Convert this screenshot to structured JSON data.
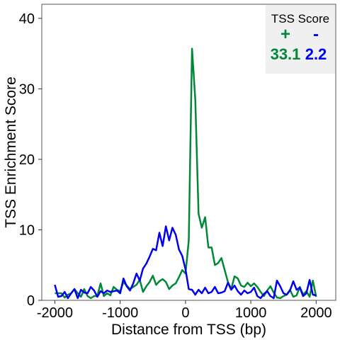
{
  "chart_data": {
    "type": "line",
    "xlabel": "Distance from TSS (bp)",
    "ylabel": "TSS Enrichment Score",
    "xlim": [
      -2200,
      2300
    ],
    "ylim": [
      0,
      42
    ],
    "xticks": [
      -2000,
      -1000,
      0,
      1000,
      2000
    ],
    "xtick_labels": [
      "-2000",
      "-1000",
      "0",
      "1000",
      "2000"
    ],
    "yticks": [
      0,
      10,
      20,
      30,
      40
    ],
    "ytick_labels": [
      "0",
      "10",
      "20",
      "30",
      "40"
    ],
    "grid": false,
    "legend": {
      "title": "TSS Score",
      "placement": "top-right",
      "entries": [
        {
          "sign": "+",
          "value": "33.1",
          "color": "#008837"
        },
        {
          "sign": "-",
          "value": "2.2",
          "color": "#0000ee"
        }
      ]
    },
    "series": [
      {
        "color": "#008837",
        "x": [
          -2000,
          -1950,
          -1900,
          -1850,
          -1800,
          -1750,
          -1700,
          -1650,
          -1600,
          -1550,
          -1500,
          -1450,
          -1400,
          -1350,
          -1300,
          -1250,
          -1200,
          -1150,
          -1100,
          -1050,
          -1000,
          -950,
          -900,
          -850,
          -800,
          -750,
          -700,
          -650,
          -600,
          -550,
          -500,
          -450,
          -400,
          -350,
          -300,
          -250,
          -200,
          -150,
          -100,
          -50,
          0,
          50,
          100,
          150,
          200,
          250,
          300,
          350,
          400,
          450,
          500,
          550,
          600,
          650,
          700,
          750,
          800,
          850,
          900,
          950,
          1000,
          1050,
          1100,
          1150,
          1200,
          1250,
          1300,
          1350,
          1400,
          1450,
          1500,
          1550,
          1600,
          1650,
          1700,
          1750,
          1800,
          1850,
          1900,
          1950,
          2000
        ],
        "y": [
          1.0,
          1.0,
          1.0,
          0.4,
          0.8,
          1.0,
          1.6,
          1.0,
          0.5,
          1.6,
          0.6,
          0.3,
          0.6,
          0.6,
          2.4,
          0.6,
          1.0,
          0.7,
          1.9,
          1.5,
          1.3,
          2.6,
          2.1,
          1.6,
          1.9,
          2.2,
          2.9,
          1.2,
          2.0,
          2.6,
          3.5,
          2.2,
          2.7,
          3.0,
          2.6,
          1.6,
          2.1,
          2.4,
          3.3,
          4.3,
          3.8,
          8.5,
          35.7,
          28.5,
          12.3,
          10.3,
          11.8,
          7.5,
          7.5,
          5.0,
          5.3,
          6.0,
          4.3,
          2.6,
          1.6,
          3.4,
          3.1,
          2.1,
          1.9,
          2.5,
          2.0,
          2.4,
          1.9,
          1.2,
          0.6,
          1.4,
          2.0,
          1.1,
          0.4,
          0.3,
          0.6,
          0.8,
          1.5,
          0.5,
          0.7,
          1.9,
          0.8,
          1.3,
          0.5,
          2.8,
          0.5
        ]
      },
      {
        "color": "#0000ee",
        "x": [
          -2000,
          -1950,
          -1900,
          -1850,
          -1800,
          -1750,
          -1700,
          -1650,
          -1600,
          -1550,
          -1500,
          -1450,
          -1400,
          -1350,
          -1300,
          -1250,
          -1200,
          -1150,
          -1100,
          -1050,
          -1000,
          -950,
          -900,
          -850,
          -800,
          -750,
          -700,
          -650,
          -600,
          -550,
          -500,
          -450,
          -400,
          -350,
          -300,
          -250,
          -200,
          -150,
          -100,
          -50,
          0,
          50,
          100,
          150,
          200,
          250,
          300,
          350,
          400,
          450,
          500,
          550,
          600,
          650,
          700,
          750,
          800,
          850,
          900,
          950,
          1000,
          1050,
          1100,
          1150,
          1200,
          1250,
          1300,
          1350,
          1400,
          1450,
          1500,
          1550,
          1600,
          1650,
          1700,
          1750,
          1800,
          1850,
          1900,
          1950,
          2000
        ],
        "y": [
          2.2,
          0.5,
          0.6,
          1.2,
          0.3,
          1.0,
          1.6,
          0.3,
          1.5,
          1.1,
          1.0,
          1.9,
          1.4,
          0.5,
          1.3,
          1.0,
          1.4,
          1.2,
          1.3,
          1.4,
          1.0,
          3.1,
          2.0,
          1.4,
          2.4,
          3.8,
          2.8,
          4.5,
          5.2,
          6.2,
          7.3,
          7.1,
          9.6,
          7.7,
          10.5,
          8.5,
          10.3,
          9.3,
          7.2,
          6.3,
          4.4,
          1.6,
          1.5,
          0.8,
          1.5,
          1.0,
          1.8,
          1.0,
          1.2,
          1.9,
          1.0,
          1.1,
          1.3,
          2.5,
          1.5,
          2.1,
          1.3,
          0.8,
          1.4,
          1.0,
          1.2,
          1.8,
          0.6,
          0.3,
          0.9,
          1.3,
          0.6,
          0.3,
          2.8,
          2.0,
          1.0,
          0.8,
          1.4,
          2.7,
          1.5,
          1.8,
          0.6,
          1.0,
          2.9,
          0.8,
          0.7
        ]
      }
    ]
  }
}
